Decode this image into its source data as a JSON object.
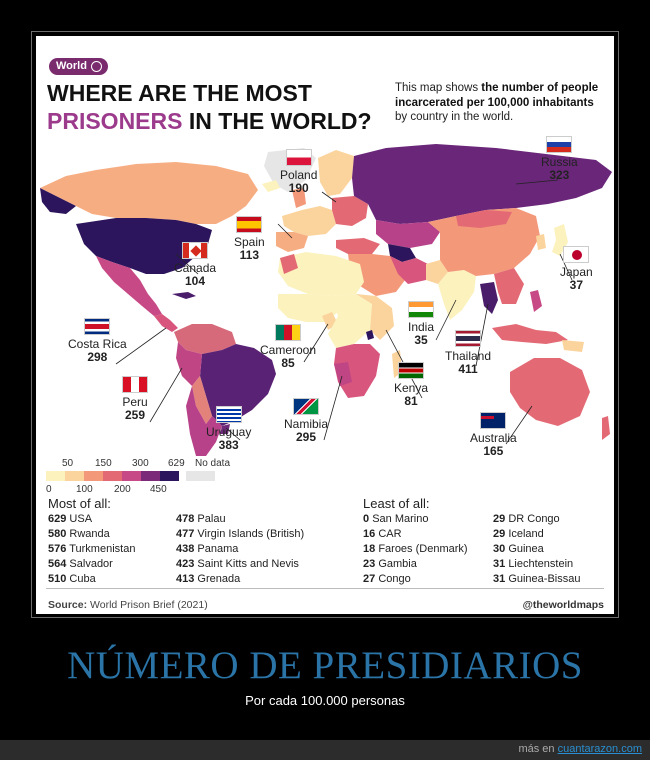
{
  "card": {
    "badge": "World",
    "title_line1": "WHERE ARE THE MOST",
    "title_accent": "PRISONERS",
    "title_rest": " IN THE WORLD?",
    "desc_pre": "This map shows ",
    "desc_bold": "the number of people incarcerated per 100,000 inhabitants",
    "desc_post": " by country in the world."
  },
  "labels": [
    {
      "name": "Poland",
      "value": "190",
      "flag": "poland"
    },
    {
      "name": "Russia",
      "value": "323",
      "flag": "russia"
    },
    {
      "name": "Spain",
      "value": "113",
      "flag": "spain"
    },
    {
      "name": "Canada",
      "value": "104",
      "flag": "canada"
    },
    {
      "name": "Japan",
      "value": "37",
      "flag": "japan"
    },
    {
      "name": "India",
      "value": "35",
      "flag": "india"
    },
    {
      "name": "Costa Rica",
      "value": "298",
      "flag": "costa-rica"
    },
    {
      "name": "Cameroon",
      "value": "85",
      "flag": "cameroon"
    },
    {
      "name": "Thailand",
      "value": "411",
      "flag": "thailand"
    },
    {
      "name": "Kenya",
      "value": "81",
      "flag": "kenya"
    },
    {
      "name": "Peru",
      "value": "259",
      "flag": "peru"
    },
    {
      "name": "Namibia",
      "value": "295",
      "flag": "namibia"
    },
    {
      "name": "Uruguay",
      "value": "383",
      "flag": "uruguay"
    },
    {
      "name": "Australia",
      "value": "165",
      "flag": "australia"
    }
  ],
  "legend": {
    "ticks_top": [
      "50",
      "150",
      "300",
      "629"
    ],
    "ticks_bottom": [
      "0",
      "100",
      "200",
      "450"
    ],
    "colors": [
      "#fbf2bd",
      "#fbd39c",
      "#f3997a",
      "#e36a74",
      "#c74a86",
      "#7b2a79",
      "#2c155c"
    ],
    "no_data_label": "No data",
    "no_data_color": "#e6e6e6"
  },
  "most": {
    "heading": "Most of all:",
    "col1": [
      {
        "v": "629",
        "c": "USA"
      },
      {
        "v": "580",
        "c": "Rwanda"
      },
      {
        "v": "576",
        "c": "Turkmenistan"
      },
      {
        "v": "564",
        "c": "Salvador"
      },
      {
        "v": "510",
        "c": "Cuba"
      }
    ],
    "col2": [
      {
        "v": "478",
        "c": "Palau"
      },
      {
        "v": "477",
        "c": "Virgin Islands (British)"
      },
      {
        "v": "438",
        "c": "Panama"
      },
      {
        "v": "423",
        "c": "Saint Kitts and Nevis"
      },
      {
        "v": "413",
        "c": "Grenada"
      }
    ]
  },
  "least": {
    "heading": "Least of all:",
    "col1": [
      {
        "v": "0",
        "c": "San Marino"
      },
      {
        "v": "16",
        "c": "CAR"
      },
      {
        "v": "18",
        "c": "Faroes (Denmark)"
      },
      {
        "v": "23",
        "c": "Gambia"
      },
      {
        "v": "27",
        "c": "Congo"
      }
    ],
    "col2": [
      {
        "v": "29",
        "c": "DR Congo"
      },
      {
        "v": "29",
        "c": "Iceland"
      },
      {
        "v": "30",
        "c": "Guinea"
      },
      {
        "v": "31",
        "c": "Liechtenstein"
      },
      {
        "v": "31",
        "c": "Guinea-Bissau"
      }
    ]
  },
  "footer": {
    "source_label": "Source:",
    "source_text": " World Prison Brief (2021)",
    "handle": "@theworldmaps"
  },
  "caption": {
    "title": "NÚMERO DE PRESIDIARIOS",
    "subtitle": "Por cada 100.000 personas"
  },
  "site_footer": {
    "prefix": "más en ",
    "site": "cuantarazon.com"
  }
}
